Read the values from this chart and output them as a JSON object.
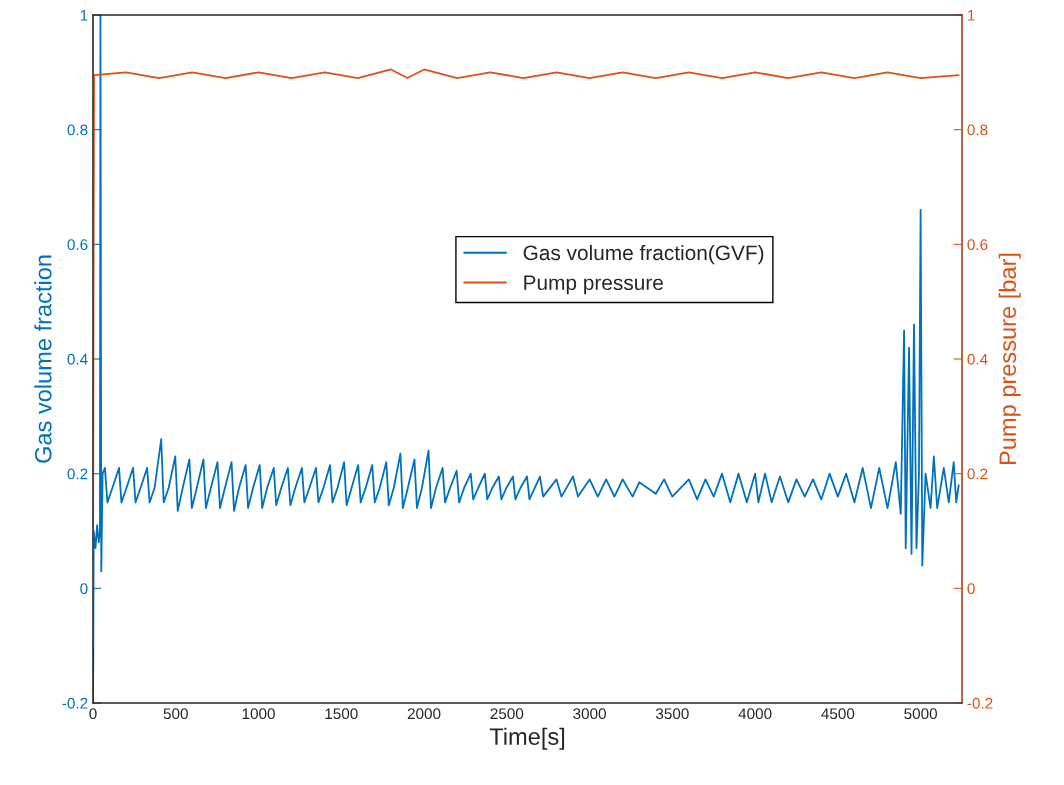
{
  "chart_data": {
    "type": "line",
    "xlabel": "Time[s]",
    "ylabel": "Gas volume fraction",
    "y2label": "Pump pressure [bar]",
    "xlim": [
      0,
      5250
    ],
    "xticks": [
      0,
      500,
      1000,
      1500,
      2000,
      2500,
      3000,
      3500,
      4000,
      4500,
      5000
    ],
    "ylim": [
      -0.2,
      1
    ],
    "yticks": [
      -0.2,
      0,
      0.2,
      0.4,
      0.6,
      0.8,
      1
    ],
    "y2lim": [
      -0.2,
      1
    ],
    "y2ticks": [
      -0.2,
      0,
      0.2,
      0.4,
      0.6,
      0.8,
      1
    ],
    "grid": false,
    "legend": "center",
    "series": [
      {
        "name": "Gas volume fraction(GVF)",
        "color": "#0072bd",
        "x": [
          0,
          2,
          4,
          15,
          25,
          35,
          42,
          45,
          50,
          58,
          72,
          87,
          117,
          157,
          172,
          202,
          242,
          257,
          287,
          327,
          342,
          372,
          412,
          427,
          457,
          497,
          512,
          542,
          582,
          597,
          627,
          667,
          682,
          712,
          752,
          767,
          797,
          837,
          852,
          882,
          922,
          937,
          967,
          1007,
          1022,
          1052,
          1092,
          1107,
          1137,
          1177,
          1192,
          1222,
          1262,
          1277,
          1307,
          1347,
          1362,
          1392,
          1432,
          1447,
          1477,
          1517,
          1532,
          1562,
          1602,
          1617,
          1647,
          1687,
          1702,
          1732,
          1772,
          1787,
          1817,
          1857,
          1872,
          1902,
          1942,
          1957,
          1987,
          2027,
          2042,
          2072,
          2112,
          2127,
          2157,
          2197,
          2212,
          2242,
          2282,
          2297,
          2327,
          2367,
          2382,
          2412,
          2452,
          2467,
          2497,
          2537,
          2552,
          2582,
          2622,
          2637,
          2700,
          2720,
          2800,
          2830,
          2900,
          2930,
          3000,
          3050,
          3100,
          3150,
          3200,
          3260,
          3300,
          3400,
          3450,
          3500,
          3600,
          3650,
          3700,
          3750,
          3800,
          3850,
          3900,
          3950,
          4000,
          4020,
          4060,
          4100,
          4150,
          4200,
          4250,
          4300,
          4350,
          4400,
          4450,
          4500,
          4550,
          4600,
          4650,
          4700,
          4750,
          4800,
          4850,
          4880,
          4900,
          4910,
          4930,
          4945,
          4960,
          4975,
          4990,
          5000,
          5010,
          5030,
          5060,
          5080,
          5100,
          5140,
          5170,
          5200,
          5215,
          5230
        ],
        "values": [
          -0.2,
          -0.1,
          0.1,
          0.07,
          0.11,
          0.08,
          0.1,
          1.0,
          0.03,
          0.2,
          0.21,
          0.15,
          0.175,
          0.21,
          0.15,
          0.175,
          0.21,
          0.15,
          0.175,
          0.21,
          0.15,
          0.175,
          0.26,
          0.15,
          0.175,
          0.23,
          0.135,
          0.175,
          0.225,
          0.14,
          0.175,
          0.225,
          0.14,
          0.175,
          0.22,
          0.14,
          0.175,
          0.22,
          0.135,
          0.175,
          0.215,
          0.14,
          0.175,
          0.215,
          0.14,
          0.175,
          0.21,
          0.145,
          0.175,
          0.21,
          0.145,
          0.175,
          0.21,
          0.15,
          0.175,
          0.21,
          0.15,
          0.175,
          0.215,
          0.15,
          0.175,
          0.22,
          0.145,
          0.175,
          0.215,
          0.15,
          0.175,
          0.215,
          0.15,
          0.175,
          0.22,
          0.145,
          0.175,
          0.235,
          0.14,
          0.175,
          0.225,
          0.14,
          0.175,
          0.24,
          0.14,
          0.175,
          0.21,
          0.15,
          0.175,
          0.205,
          0.15,
          0.175,
          0.2,
          0.155,
          0.175,
          0.2,
          0.155,
          0.175,
          0.195,
          0.155,
          0.175,
          0.195,
          0.155,
          0.175,
          0.195,
          0.155,
          0.195,
          0.16,
          0.19,
          0.16,
          0.195,
          0.16,
          0.19,
          0.16,
          0.19,
          0.16,
          0.19,
          0.16,
          0.185,
          0.165,
          0.19,
          0.16,
          0.19,
          0.155,
          0.19,
          0.16,
          0.2,
          0.15,
          0.2,
          0.15,
          0.2,
          0.15,
          0.2,
          0.15,
          0.195,
          0.15,
          0.19,
          0.16,
          0.19,
          0.155,
          0.2,
          0.16,
          0.2,
          0.15,
          0.21,
          0.14,
          0.21,
          0.14,
          0.22,
          0.13,
          0.45,
          0.07,
          0.42,
          0.06,
          0.46,
          0.07,
          0.2,
          0.66,
          0.04,
          0.2,
          0.14,
          0.23,
          0.14,
          0.21,
          0.15,
          0.22,
          0.15,
          0.18
        ]
      },
      {
        "name": "Pump pressure",
        "color": "#d95319",
        "axis": "y2",
        "x": [
          0,
          3,
          6,
          200,
          400,
          600,
          800,
          1000,
          1200,
          1400,
          1600,
          1800,
          1900,
          2000,
          2200,
          2400,
          2600,
          2800,
          3000,
          3200,
          3400,
          3600,
          3800,
          4000,
          4200,
          4400,
          4600,
          4800,
          5000,
          5230
        ],
        "values": [
          -0.1,
          0.5,
          0.895,
          0.9,
          0.89,
          0.9,
          0.89,
          0.9,
          0.89,
          0.9,
          0.89,
          0.905,
          0.89,
          0.905,
          0.89,
          0.9,
          0.89,
          0.9,
          0.89,
          0.9,
          0.89,
          0.9,
          0.89,
          0.9,
          0.89,
          0.9,
          0.89,
          0.9,
          0.89,
          0.895
        ]
      }
    ]
  }
}
